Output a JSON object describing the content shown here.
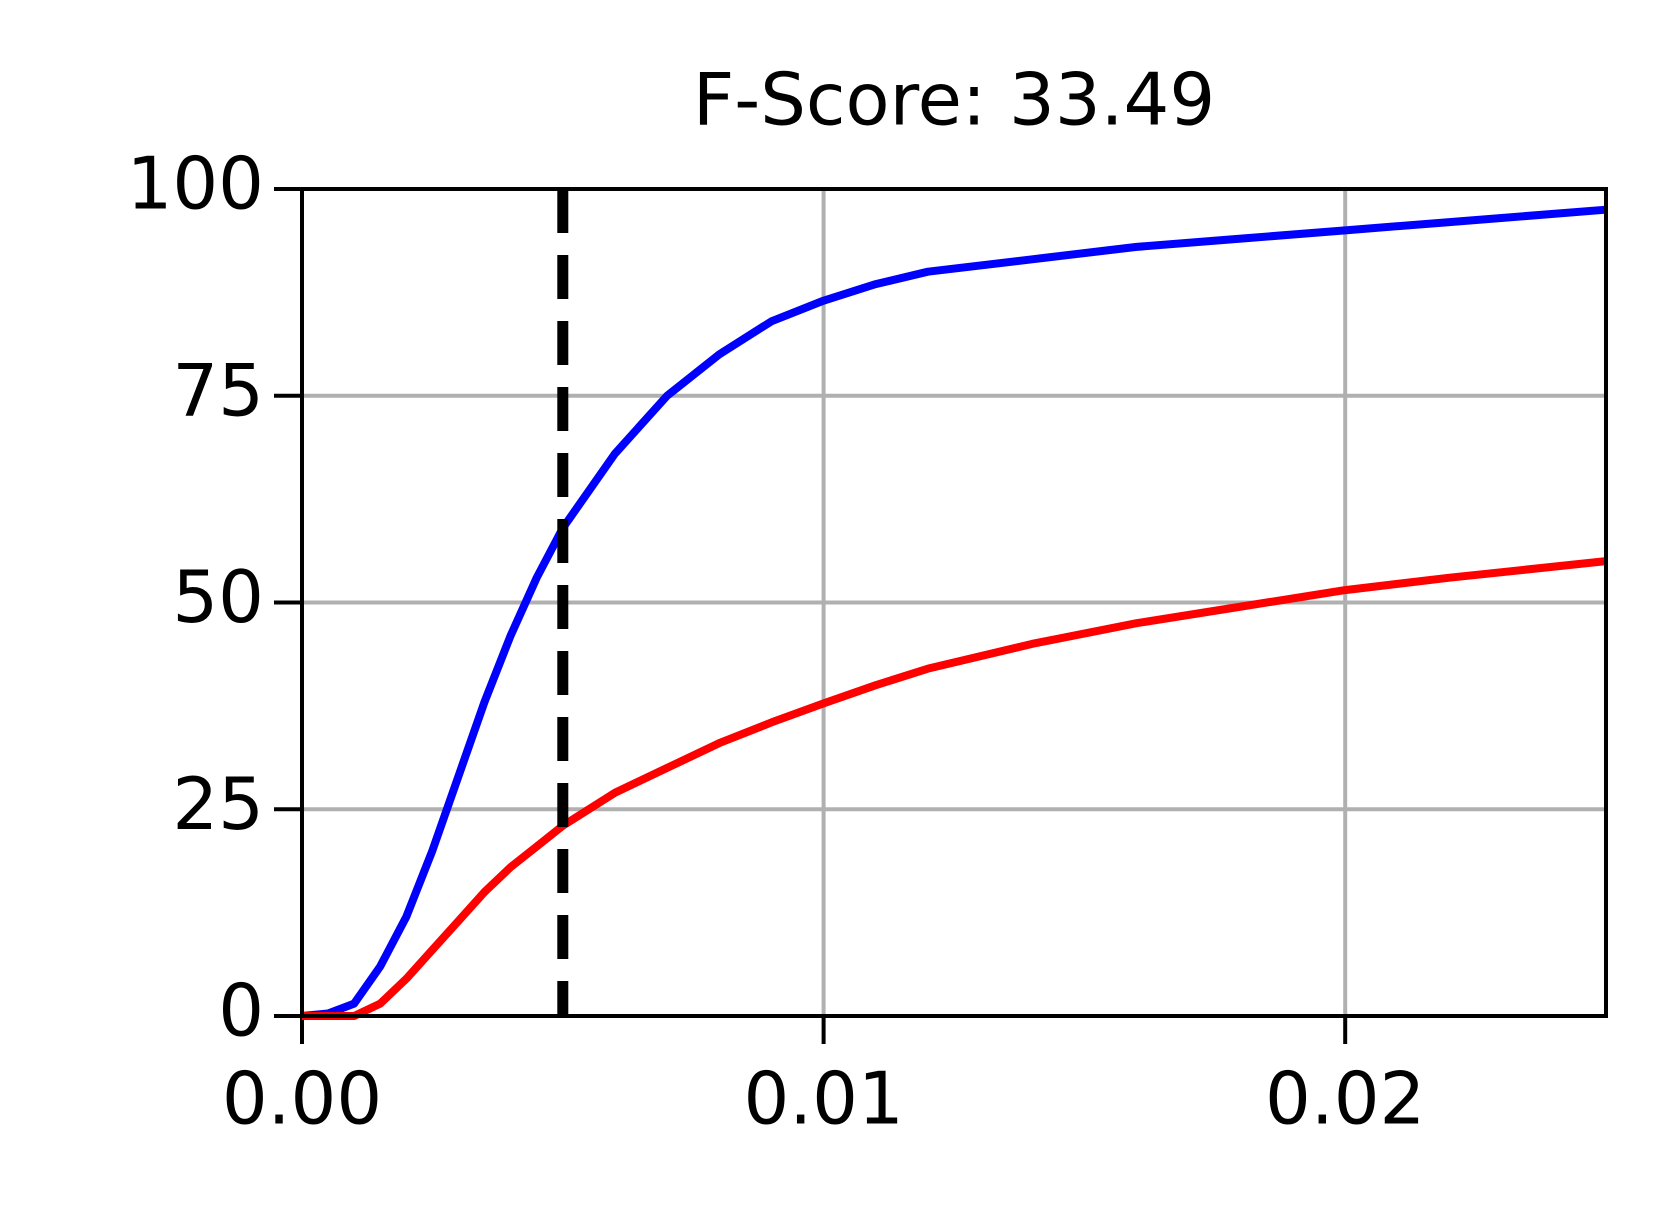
{
  "chart_data": {
    "type": "line",
    "title": "F-Score: 33.49",
    "x": [
      0,
      0.0005,
      0.001,
      0.0015,
      0.002,
      0.0025,
      0.003,
      0.0035,
      0.004,
      0.0045,
      0.005,
      0.006,
      0.007,
      0.008,
      0.009,
      0.01,
      0.011,
      0.012,
      0.014,
      0.016,
      0.018,
      0.02,
      0.022,
      0.025
    ],
    "series": [
      {
        "color": "#0000ff",
        "values": [
          0,
          0.3,
          1.5,
          6,
          12,
          20,
          29,
          38,
          46,
          53,
          59,
          68,
          75,
          80,
          84,
          86.5,
          88.5,
          90,
          91.5,
          93,
          94,
          95,
          96,
          97.5
        ]
      },
      {
        "color": "#ff0000",
        "values": [
          0,
          0,
          0,
          1.5,
          4.5,
          8,
          11.5,
          15,
          18,
          20.5,
          23,
          27,
          30,
          33,
          35.5,
          37.8,
          40,
          42,
          45,
          47.5,
          49.5,
          51.5,
          53,
          55
        ]
      }
    ],
    "vline": 0.005,
    "xlim": [
      0,
      0.025
    ],
    "xticks": [
      {
        "value": 0,
        "label": "0.00"
      },
      0.01,
      0.02
    ],
    "ylim": [
      0,
      100
    ],
    "yticks": [
      0,
      25,
      50,
      75,
      100
    ],
    "grid": true
  }
}
